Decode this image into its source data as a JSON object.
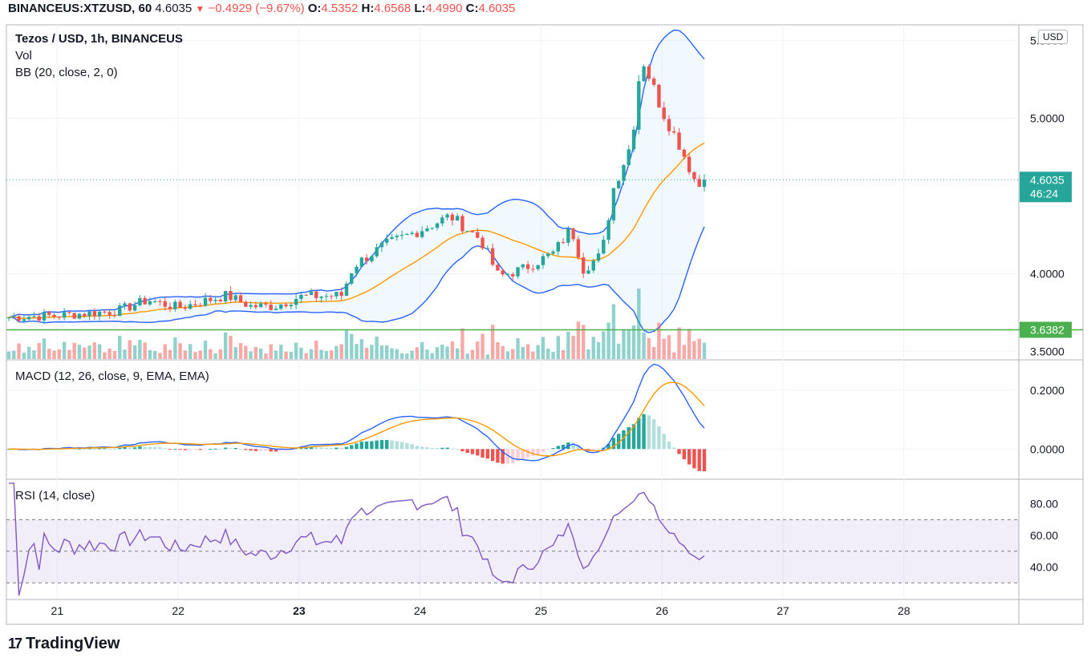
{
  "header": {
    "symbol": "BINANCEUS:XTZUSD, 60",
    "price": "4.6035",
    "change": "−0.4929 (−9.67%)",
    "open_label": "O:",
    "open": "4.5352",
    "high_label": "H:",
    "high": "4.6568",
    "low_label": "L:",
    "low": "4.4990",
    "close_label": "C:",
    "close": "4.6035"
  },
  "legend": {
    "title": "Tezos / USD, 1h, BINANCEUS",
    "vol": "Vol",
    "bb": "BB (20, close, 2, 0)",
    "macd": "MACD (12, 26, close, 9, EMA, EMA)",
    "rsi": "RSI (14, close)"
  },
  "currency": "USD",
  "price_tag": {
    "value": "4.6035",
    "countdown": "46:24"
  },
  "level_tag": {
    "value": "3.6382"
  },
  "brand": "TradingView",
  "colors": {
    "up": "#26a69a",
    "down": "#ef5350",
    "bb_line": "#2962ff",
    "basis": "#ff9800",
    "level": "#4caf50",
    "rsi": "#7e57c2"
  },
  "chart_data": [
    {
      "type": "candlestick",
      "title": "Tezos / USD, 1h, BINANCEUS",
      "ylim": [
        3.45,
        5.6
      ],
      "y_ticks": [
        "3.5000",
        "4.0000",
        "5.0000",
        "5.5000"
      ],
      "x_ticks": [
        "21",
        "22",
        "23",
        "24",
        "25",
        "26",
        "27",
        "28"
      ],
      "x_range_days": [
        20.58,
        28.95
      ],
      "last_close": 4.6035,
      "horizontal_level": 3.6382,
      "close_anchors": [
        {
          "day": 20.6,
          "close": 3.72
        },
        {
          "day": 21.0,
          "close": 3.73
        },
        {
          "day": 21.5,
          "close": 3.76
        },
        {
          "day": 21.75,
          "close": 3.83
        },
        {
          "day": 22.0,
          "close": 3.78
        },
        {
          "day": 22.4,
          "close": 3.86
        },
        {
          "day": 22.6,
          "close": 3.79
        },
        {
          "day": 22.8,
          "close": 3.79
        },
        {
          "day": 23.0,
          "close": 3.85
        },
        {
          "day": 23.35,
          "close": 3.86
        },
        {
          "day": 23.45,
          "close": 4.05
        },
        {
          "day": 23.7,
          "close": 4.18
        },
        {
          "day": 24.0,
          "close": 4.28
        },
        {
          "day": 24.25,
          "close": 4.37
        },
        {
          "day": 24.5,
          "close": 4.22
        },
        {
          "day": 24.65,
          "close": 3.98
        },
        {
          "day": 24.85,
          "close": 4.03
        },
        {
          "day": 25.1,
          "close": 4.13
        },
        {
          "day": 25.25,
          "close": 4.29
        },
        {
          "day": 25.35,
          "close": 4.03
        },
        {
          "day": 25.5,
          "close": 4.12
        },
        {
          "day": 25.6,
          "close": 4.55
        },
        {
          "day": 25.75,
          "close": 4.85
        },
        {
          "day": 25.83,
          "close": 5.4
        },
        {
          "day": 26.0,
          "close": 5.05
        },
        {
          "day": 26.15,
          "close": 4.82
        },
        {
          "day": 26.3,
          "close": 4.55
        },
        {
          "day": 26.33,
          "close": 4.6035
        }
      ],
      "overlays": [
        "Bollinger Bands (20, 2)",
        "Volume"
      ]
    },
    {
      "type": "line",
      "title": "MACD (12, 26, close, 9, EMA, EMA)",
      "ylim": [
        -0.1,
        0.3
      ],
      "y_ticks": [
        "0.0000",
        "0.2000"
      ],
      "series": [
        {
          "name": "MACD"
        },
        {
          "name": "Signal"
        },
        {
          "name": "Histogram"
        }
      ]
    },
    {
      "type": "line",
      "title": "RSI (14, close)",
      "ylim": [
        20,
        95
      ],
      "y_ticks": [
        "40.00",
        "60.00",
        "80.00"
      ],
      "bands": [
        30,
        50,
        70
      ]
    }
  ]
}
